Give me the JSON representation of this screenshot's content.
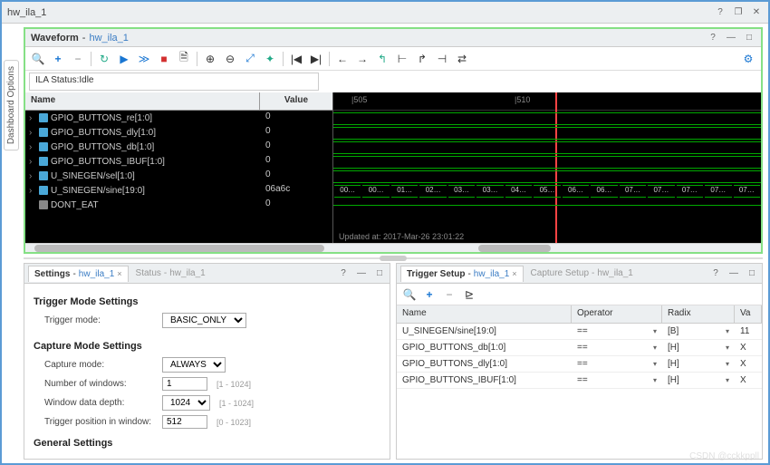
{
  "window": {
    "title": "hw_ila_1"
  },
  "sideTab": "Dashboard Options",
  "waveform": {
    "title": "Waveform",
    "subTitle": "hw_ila_1",
    "ilaStatus": "ILA Status:Idle",
    "headers": {
      "name": "Name",
      "value": "Value"
    },
    "signals": [
      {
        "name": "GPIO_BUTTONS_re[1:0]",
        "value": "0",
        "expand": true,
        "icon": "blue"
      },
      {
        "name": "GPIO_BUTTONS_dly[1:0]",
        "value": "0",
        "expand": true,
        "icon": "blue"
      },
      {
        "name": "GPIO_BUTTONS_db[1:0]",
        "value": "0",
        "expand": true,
        "icon": "blue"
      },
      {
        "name": "GPIO_BUTTONS_IBUF[1:0]",
        "value": "0",
        "expand": true,
        "icon": "blue"
      },
      {
        "name": "U_SINEGEN/sel[1:0]",
        "value": "0",
        "expand": true,
        "icon": "blue"
      },
      {
        "name": "U_SINEGEN/sine[19:0]",
        "value": "06a6c",
        "expand": true,
        "icon": "blue"
      },
      {
        "name": "DONT_EAT",
        "value": "0",
        "expand": false,
        "icon": "gray"
      }
    ],
    "ruler": {
      "ticks": [
        {
          "pos": 20,
          "label": "|505"
        },
        {
          "pos": 200,
          "label": "|510"
        }
      ]
    },
    "busValues": [
      "00…",
      "00…",
      "01…",
      "02…",
      "03…",
      "03…",
      "04…",
      "05…",
      "06…",
      "06…",
      "07…",
      "07…",
      "07…",
      "07…",
      "07…"
    ],
    "cursorPos": 245,
    "timestamp": "Updated at: 2017-Mar-26 23:01:22"
  },
  "toolbar": {
    "search": "🔍",
    "plus": "+",
    "minus": "−",
    "refresh": "↻",
    "play": "▶",
    "ff": "≫",
    "stop": "■",
    "doc": "🗎",
    "zoomIn": "⊕",
    "zoomOut": "⊖",
    "fit": "⤢",
    "cursor": "✦",
    "first": "|◀",
    "last": "▶|",
    "prev": "←",
    "next": "→",
    "prevEdge": "↰",
    "nextEdge": "↱",
    "marker1": "⊢",
    "marker2": "⊣",
    "swap": "⇄",
    "gear": "⚙"
  },
  "settings": {
    "tabName": "Settings",
    "tabSub": "hw_ila_1",
    "tab2Name": "Status",
    "tab2Sub": "hw_ila_1",
    "triggerHeader": "Trigger Mode Settings",
    "triggerModeLabel": "Trigger mode:",
    "triggerModeValue": "BASIC_ONLY",
    "captureHeader": "Capture Mode Settings",
    "captureModeLabel": "Capture mode:",
    "captureModeValue": "ALWAYS",
    "numWindowsLabel": "Number of windows:",
    "numWindowsValue": "1",
    "numWindowsHint": "[1 - 1024]",
    "dataDepthLabel": "Window data depth:",
    "dataDepthValue": "1024",
    "dataDepthHint": "[1 - 1024]",
    "trigPosLabel": "Trigger position in window:",
    "trigPosValue": "512",
    "trigPosHint": "[0 - 1023]",
    "generalHeader": "General Settings"
  },
  "triggerSetup": {
    "tabName": "Trigger Setup",
    "tabSub": "hw_ila_1",
    "tab2Name": "Capture Setup",
    "tab2Sub": "hw_ila_1",
    "cols": {
      "name": "Name",
      "op": "Operator",
      "radix": "Radix",
      "val": "Va"
    },
    "rows": [
      {
        "name": "U_SINEGEN/sine[19:0]",
        "op": "==",
        "radix": "[B]",
        "val": "11"
      },
      {
        "name": "GPIO_BUTTONS_db[1:0]",
        "op": "==",
        "radix": "[H]",
        "val": "X"
      },
      {
        "name": "GPIO_BUTTONS_dly[1:0]",
        "op": "==",
        "radix": "[H]",
        "val": "X"
      },
      {
        "name": "GPIO_BUTTONS_IBUF[1:0]",
        "op": "==",
        "radix": "[H]",
        "val": "X"
      }
    ]
  },
  "watermark": "CSDN @cckkppll"
}
